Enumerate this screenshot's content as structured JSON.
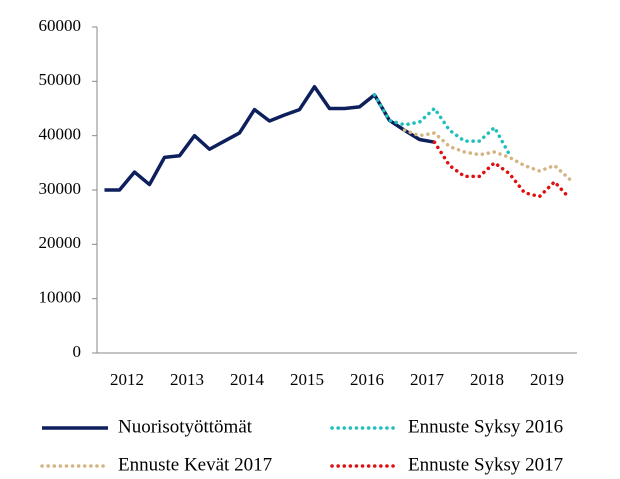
{
  "chart_data": {
    "type": "line",
    "categories": [
      null,
      "2012",
      null,
      null,
      null,
      "2013",
      null,
      null,
      null,
      "2014",
      null,
      null,
      null,
      "2015",
      null,
      null,
      null,
      "2016",
      null,
      null,
      null,
      "2017",
      null,
      null,
      null,
      "2018",
      null,
      null,
      null,
      "2019",
      null,
      null
    ],
    "series": [
      {
        "name": "Nuorisotyöttömät",
        "color": "#0d1f5c",
        "style": "solid",
        "values": [
          30000,
          30000,
          33300,
          31000,
          36000,
          36300,
          40000,
          37500,
          39000,
          40500,
          44800,
          42700,
          43800,
          44800,
          49000,
          45000,
          45000,
          45300,
          47500,
          42800,
          41000,
          39300,
          38800,
          null,
          null,
          null,
          null,
          null,
          null,
          null,
          null,
          null
        ]
      },
      {
        "name": "Ennuste Syksy 2016",
        "color": "#1fbfbf",
        "style": "dotted",
        "values": [
          null,
          null,
          null,
          null,
          null,
          null,
          null,
          null,
          null,
          null,
          null,
          null,
          null,
          null,
          null,
          null,
          null,
          null,
          47500,
          42800,
          42000,
          42500,
          45000,
          41000,
          39000,
          39000,
          41500,
          36500,
          null,
          null,
          null,
          null
        ]
      },
      {
        "name": "Ennuste Kevät 2017",
        "color": "#d4b483",
        "style": "dotted",
        "values": [
          null,
          null,
          null,
          null,
          null,
          null,
          null,
          null,
          null,
          null,
          null,
          null,
          null,
          null,
          null,
          null,
          null,
          null,
          null,
          null,
          41000,
          40000,
          40500,
          38000,
          37000,
          36500,
          37000,
          36000,
          34500,
          33500,
          34500,
          32000
        ]
      },
      {
        "name": "Ennuste Syksy 2017",
        "color": "#e01010",
        "style": "dotted",
        "values": [
          null,
          null,
          null,
          null,
          null,
          null,
          null,
          null,
          null,
          null,
          null,
          null,
          null,
          null,
          null,
          null,
          null,
          null,
          null,
          null,
          null,
          null,
          38800,
          34500,
          32500,
          32500,
          35000,
          33000,
          29500,
          28800,
          31500,
          28500
        ]
      }
    ],
    "ylim": [
      0,
      60000
    ],
    "yticks": [
      0,
      10000,
      20000,
      30000,
      40000,
      50000,
      60000
    ],
    "grid": false
  }
}
